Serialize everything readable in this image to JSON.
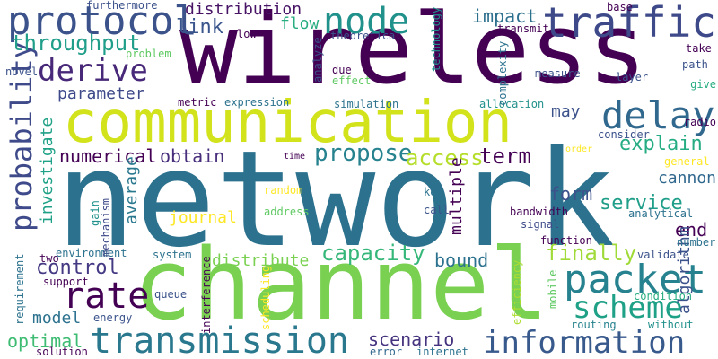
{
  "palette": {
    "dark_purple": "#440154",
    "indigo": "#3b528b",
    "teal_blue": "#2c728e",
    "teal": "#21918c",
    "green": "#27ad81",
    "lime": "#5ec962",
    "yellow_green": "#addc30",
    "yellow": "#fde725"
  },
  "words": [
    {
      "text": "network",
      "color": "#2c728e",
      "weight": 1.0
    },
    {
      "text": "wireless",
      "color": "#440154",
      "weight": 0.9
    },
    {
      "text": "channel",
      "color": "#7ad151",
      "weight": 0.85
    },
    {
      "text": "communication",
      "color": "#d2e21b",
      "weight": 0.6
    },
    {
      "text": "traffic",
      "color": "#3e4989",
      "weight": 0.45
    },
    {
      "text": "node",
      "color": "#21918c",
      "weight": 0.4
    },
    {
      "text": "protocol",
      "color": "#3b528b",
      "weight": 0.4
    },
    {
      "text": "packet",
      "color": "#26828e",
      "weight": 0.4
    },
    {
      "text": "delay",
      "color": "#31688e",
      "weight": 0.38
    },
    {
      "text": "transmission",
      "color": "#2a788e",
      "weight": 0.38
    },
    {
      "text": "information",
      "color": "#38598c",
      "weight": 0.35
    },
    {
      "text": "scheme",
      "color": "#1fa187",
      "weight": 0.35
    },
    {
      "text": "rate",
      "color": "#440154",
      "weight": 0.35
    },
    {
      "text": "derive",
      "color": "#482878",
      "weight": 0.3
    },
    {
      "text": "probability",
      "color": "#3e4a89",
      "weight": 0.3
    },
    {
      "text": "throughput",
      "color": "#1f9e89",
      "weight": 0.25
    },
    {
      "text": "propose",
      "color": "#26828e",
      "weight": 0.25
    },
    {
      "text": "access",
      "color": "#b5de2b",
      "weight": 0.25
    },
    {
      "text": "term",
      "color": "#440154",
      "weight": 0.25
    },
    {
      "text": "capacity",
      "color": "#35b779",
      "weight": 0.22
    },
    {
      "text": "finally",
      "color": "#a0da39",
      "weight": 0.22
    },
    {
      "text": "control",
      "color": "#443983",
      "weight": 0.22
    },
    {
      "text": "form",
      "color": "#3b528b",
      "weight": 0.22
    },
    {
      "text": "service",
      "color": "#1f9e89",
      "weight": 0.22
    },
    {
      "text": "explain",
      "color": "#25ac82",
      "weight": 0.22
    },
    {
      "text": "impact",
      "color": "#2d708e",
      "weight": 0.2
    },
    {
      "text": "link",
      "color": "#39558c",
      "weight": 0.2
    },
    {
      "text": "flow",
      "color": "#27ad81",
      "weight": 0.18
    },
    {
      "text": "distribution",
      "color": "#471365",
      "weight": 0.18
    },
    {
      "text": "optimal",
      "color": "#3fbc73",
      "weight": 0.2
    },
    {
      "text": "numerical",
      "color": "#440154",
      "weight": 0.2
    },
    {
      "text": "obtain",
      "color": "#472d7b",
      "weight": 0.2
    },
    {
      "text": "scenario",
      "color": "#46337f",
      "weight": 0.2
    },
    {
      "text": "parameter",
      "color": "#3e4989",
      "weight": 0.18
    },
    {
      "text": "may",
      "color": "#3b528b",
      "weight": 0.18
    },
    {
      "text": "distribute",
      "color": "#7ad151",
      "weight": 0.18
    },
    {
      "text": "bound",
      "color": "#2c728e",
      "weight": 0.18
    },
    {
      "text": "end",
      "color": "#440154",
      "weight": 0.18
    },
    {
      "text": "cannon",
      "color": "#31688e",
      "weight": 0.15
    },
    {
      "text": "algorithm",
      "color": "#3b528b",
      "weight": 0.16
    },
    {
      "text": "investigate",
      "color": "#1fa187",
      "weight": 0.16
    },
    {
      "text": "average",
      "color": "#2a788e",
      "weight": 0.16
    },
    {
      "text": "multiple",
      "color": "#440154",
      "weight": 0.16
    },
    {
      "text": "journal",
      "color": "#fde725",
      "weight": 0.15
    },
    {
      "text": "model",
      "color": "#2c728e",
      "weight": 0.15
    },
    {
      "text": "analytical",
      "color": "#2c728e",
      "weight": 0.1
    },
    {
      "text": "bandwidth",
      "color": "#440154",
      "weight": 0.1
    },
    {
      "text": "signal",
      "color": "#3e4a89",
      "weight": 0.1
    },
    {
      "text": "validate",
      "color": "#3b528b",
      "weight": 0.1
    },
    {
      "text": "function",
      "color": "#440154",
      "weight": 0.1
    },
    {
      "text": "number",
      "color": "#2c728e",
      "weight": 0.08
    },
    {
      "text": "routing",
      "color": "#26828e",
      "weight": 0.08
    },
    {
      "text": "without",
      "color": "#21918c",
      "weight": 0.08
    },
    {
      "text": "condition",
      "color": "#27ad81",
      "weight": 0.08
    },
    {
      "text": "mobile",
      "color": "#5ec962",
      "weight": 0.08
    },
    {
      "text": "efficiency",
      "color": "#addc30",
      "weight": 0.08
    },
    {
      "text": "error",
      "color": "#31688e",
      "weight": 0.08
    },
    {
      "text": "internet",
      "color": "#2c728e",
      "weight": 0.08
    },
    {
      "text": "scheduling",
      "color": "#fde725",
      "weight": 0.08
    },
    {
      "text": "interference",
      "color": "#440154",
      "weight": 0.08
    },
    {
      "text": "queue",
      "color": "#3b528b",
      "weight": 0.08
    },
    {
      "text": "system",
      "color": "#2c728e",
      "weight": 0.08
    },
    {
      "text": "environment",
      "color": "#2c728e",
      "weight": 0.08
    },
    {
      "text": "mechanism",
      "color": "#3e4989",
      "weight": 0.08
    },
    {
      "text": "gain",
      "color": "#21918c",
      "weight": 0.08
    },
    {
      "text": "two",
      "color": "#440154",
      "weight": 0.08
    },
    {
      "text": "support",
      "color": "#440154",
      "weight": 0.08
    },
    {
      "text": "requirement",
      "color": "#2c728e",
      "weight": 0.08
    },
    {
      "text": "energy",
      "color": "#3b528b",
      "weight": 0.08
    },
    {
      "text": "solution",
      "color": "#440154",
      "weight": 0.08
    },
    {
      "text": "random",
      "color": "#fde725",
      "weight": 0.08
    },
    {
      "text": "address",
      "color": "#5ec962",
      "weight": 0.08
    },
    {
      "text": "key",
      "color": "#2c728e",
      "weight": 0.08
    },
    {
      "text": "call",
      "color": "#3b528b",
      "weight": 0.08
    },
    {
      "text": "time",
      "color": "#440154",
      "weight": 0.08
    },
    {
      "text": "order",
      "color": "#fde725",
      "weight": 0.08
    },
    {
      "text": "general",
      "color": "#fde725",
      "weight": 0.08
    },
    {
      "text": "consider",
      "color": "#3b528b",
      "weight": 0.08
    },
    {
      "text": "radio",
      "color": "#440154",
      "weight": 0.08
    },
    {
      "text": "give",
      "color": "#27ad81",
      "weight": 0.08
    },
    {
      "text": "path",
      "color": "#3b528b",
      "weight": 0.08
    },
    {
      "text": "take",
      "color": "#440154",
      "weight": 0.08
    },
    {
      "text": "layer",
      "color": "#3b528b",
      "weight": 0.08
    },
    {
      "text": "measure",
      "color": "#3b528b",
      "weight": 0.08
    },
    {
      "text": "allocation",
      "color": "#21918c",
      "weight": 0.08
    },
    {
      "text": "complexity",
      "color": "#2c728e",
      "weight": 0.08
    },
    {
      "text": "transmit",
      "color": "#440154",
      "weight": 0.08
    },
    {
      "text": "base",
      "color": "#440154",
      "weight": 0.08
    },
    {
      "text": "technology",
      "color": "#21918c",
      "weight": 0.08
    },
    {
      "text": "theoretical",
      "color": "#3b528b",
      "weight": 0.08
    },
    {
      "text": "analyze",
      "color": "#3b528b",
      "weight": 0.08
    },
    {
      "text": "due",
      "color": "#440154",
      "weight": 0.08
    },
    {
      "text": "effect",
      "color": "#5ec962",
      "weight": 0.08
    },
    {
      "text": "simulation",
      "color": "#2c728e",
      "weight": 0.08
    },
    {
      "text": "metric",
      "color": "#440154",
      "weight": 0.08
    },
    {
      "text": "expression",
      "color": "#2c728e",
      "weight": 0.08
    },
    {
      "text": "problem",
      "color": "#5ec962",
      "weight": 0.08
    },
    {
      "text": "novel",
      "color": "#3b528b",
      "weight": 0.08
    },
    {
      "text": "low",
      "color": "#440154",
      "weight": 0.08
    },
    {
      "text": "furthermore",
      "color": "#3b528b",
      "weight": 0.08
    }
  ]
}
